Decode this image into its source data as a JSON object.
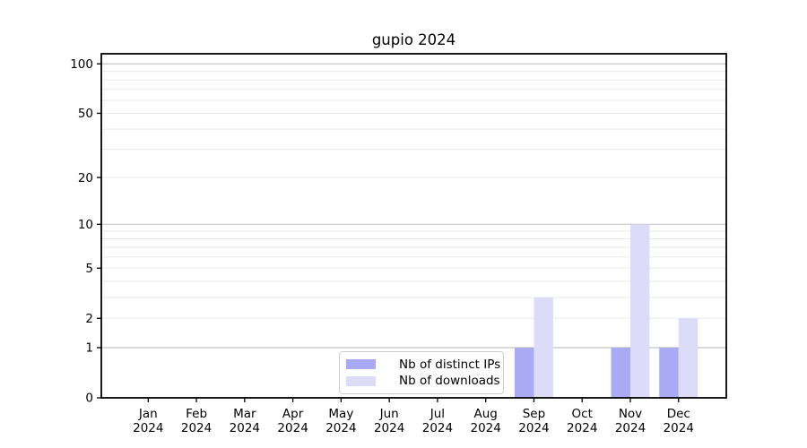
{
  "chart_data": {
    "type": "bar",
    "title": "gupio 2024",
    "categories": [
      "Jan",
      "Feb",
      "Mar",
      "Apr",
      "May",
      "Jun",
      "Jul",
      "Aug",
      "Sep",
      "Oct",
      "Nov",
      "Dec"
    ],
    "x_axis": {
      "year_label": "2024"
    },
    "series": [
      {
        "name": "Nb of distinct IPs",
        "color": "#a9a9f6",
        "values": [
          0,
          0,
          0,
          0,
          0,
          0,
          0,
          0,
          1,
          0,
          1,
          1
        ]
      },
      {
        "name": "Nb of downloads",
        "color": "#dcdcf9",
        "values": [
          0,
          0,
          0,
          0,
          0,
          0,
          0,
          0,
          3,
          0,
          10,
          2
        ]
      }
    ],
    "y_axis": {
      "scale": "log10(1+x)",
      "ylim": [
        0,
        115.1
      ],
      "ticks": [
        0,
        1,
        2,
        5,
        10,
        20,
        50,
        100
      ],
      "major_gridlines": [
        1,
        10,
        100
      ],
      "minor_gridlines": [
        2,
        3,
        4,
        5,
        6,
        7,
        8,
        9,
        20,
        30,
        40,
        50,
        60,
        70,
        80,
        90
      ]
    },
    "legend": {
      "position": "lower center inside"
    },
    "colors": {
      "axis": "#000000",
      "major_grid": "#c4c4c4",
      "minor_grid": "#eaeaea",
      "background": "#ffffff"
    }
  }
}
